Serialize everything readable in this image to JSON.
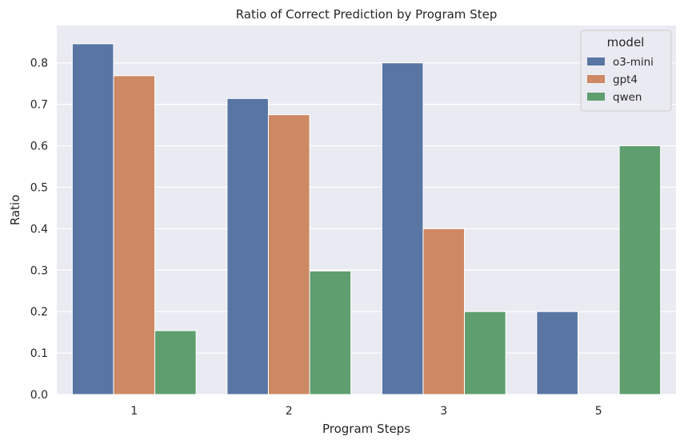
{
  "chart_data": {
    "type": "bar",
    "title": "Ratio of Correct Prediction by Program Step",
    "xlabel": "Program Steps",
    "ylabel": "Ratio",
    "categories": [
      "1",
      "2",
      "3",
      "5"
    ],
    "series": [
      {
        "name": "o3-mini",
        "color": "#5875a4",
        "values": [
          0.846,
          0.714,
          0.8,
          0.2
        ]
      },
      {
        "name": "gpt4",
        "color": "#cc8963",
        "values": [
          0.769,
          0.675,
          0.4,
          0.0
        ]
      },
      {
        "name": "qwen",
        "color": "#5f9e6e",
        "values": [
          0.154,
          0.298,
          0.2,
          0.6
        ]
      }
    ],
    "ylim": [
      0,
      0.89
    ],
    "yticks": [
      "0.0",
      "0.1",
      "0.2",
      "0.3",
      "0.4",
      "0.5",
      "0.6",
      "0.7",
      "0.8"
    ],
    "grid": true,
    "legend": {
      "title": "model",
      "placement": "top-right"
    },
    "background": "#eaeaf2"
  }
}
